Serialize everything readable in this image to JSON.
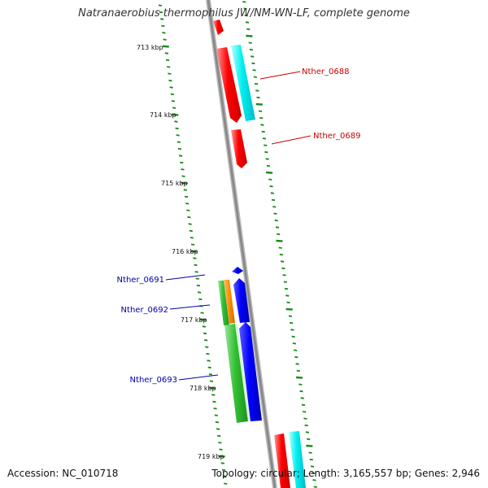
{
  "title": "Natranaerobius thermophilus JW/NM-WN-LF, complete genome",
  "footer": {
    "accession": "Accession: NC_010718",
    "meta": "Topology: circular; Length: 3,165,557 bp; Genes: 2,946"
  },
  "ticks": [
    {
      "label": "713 kbp"
    },
    {
      "label": "714 kbp"
    },
    {
      "label": "715 kbp"
    },
    {
      "label": "716 kbp"
    },
    {
      "label": "717 kbp"
    },
    {
      "label": "718 kbp"
    },
    {
      "label": "719 kbp"
    }
  ],
  "labels": [
    {
      "text": "Nther_0688",
      "color": "#cc0000"
    },
    {
      "text": "Nther_0689",
      "color": "#cc0000"
    },
    {
      "text": "Nther_0691",
      "color": "#0000aa"
    },
    {
      "text": "Nther_0692",
      "color": "#0000aa"
    },
    {
      "text": "Nther_0693",
      "color": "#0000aa"
    }
  ],
  "colors": {
    "red": "#ff0000",
    "cyan": "#00e5e5",
    "blue": "#0000ee",
    "green": "#33bb33",
    "orange": "#ff8800",
    "tick_green": "#1a8a1a",
    "backbone": "#8a8a8a"
  }
}
